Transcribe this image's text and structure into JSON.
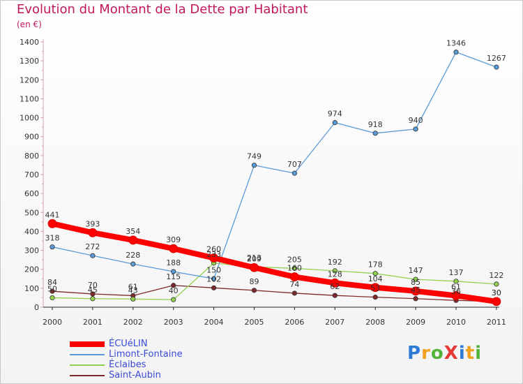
{
  "title": "Evolution du Montant de la Dette par Habitant",
  "unit_label": "(en €)",
  "logo": "ProXiti",
  "logo_letters": [
    {
      "ch": "P",
      "color": "#2d7bd6"
    },
    {
      "ch": "r",
      "color": "#f0a21c"
    },
    {
      "ch": "o",
      "color": "#53b33a"
    },
    {
      "ch": "X",
      "color": "#e53935"
    },
    {
      "ch": "i",
      "color": "#2d7bd6"
    },
    {
      "ch": "t",
      "color": "#f0a21c"
    },
    {
      "ch": "i",
      "color": "#53b33a"
    }
  ],
  "chart_data": {
    "type": "line",
    "title": "Evolution du Montant de la Dette par Habitant",
    "ylabel": "(en €)",
    "xlabel": "",
    "x": [
      "2000",
      "2001",
      "2002",
      "2003",
      "2004",
      "2005",
      "2006",
      "2007",
      "2008",
      "2009",
      "2010",
      "2011"
    ],
    "ylim": [
      0,
      1400
    ],
    "yticks": [
      0,
      100,
      200,
      300,
      400,
      500,
      600,
      700,
      800,
      900,
      1000,
      1100,
      1200,
      1300,
      1400
    ],
    "grid": false,
    "legend_position": "bottom-left",
    "series": [
      {
        "name": "ÉCUéLIN",
        "color": "#ff0000",
        "values": [
          441,
          393,
          354,
          309,
          260,
          209,
          160,
          128,
          104,
          85,
          61,
          30
        ]
      },
      {
        "name": "Limont-Fontaine",
        "color": "#5b9bd5",
        "values": [
          318,
          272,
          228,
          188,
          150,
          749,
          707,
          974,
          918,
          940,
          1346,
          1267
        ]
      },
      {
        "name": "Éclaibes",
        "color": "#92d050",
        "values": [
          50,
          45,
          43,
          40,
          233,
          213,
          205,
          192,
          178,
          147,
          137,
          122
        ]
      },
      {
        "name": "Saint-Aubin",
        "color": "#7f2a2a",
        "values": [
          84,
          70,
          61,
          115,
          102,
          89,
          74,
          62,
          53,
          45,
          36,
          30
        ]
      }
    ]
  }
}
